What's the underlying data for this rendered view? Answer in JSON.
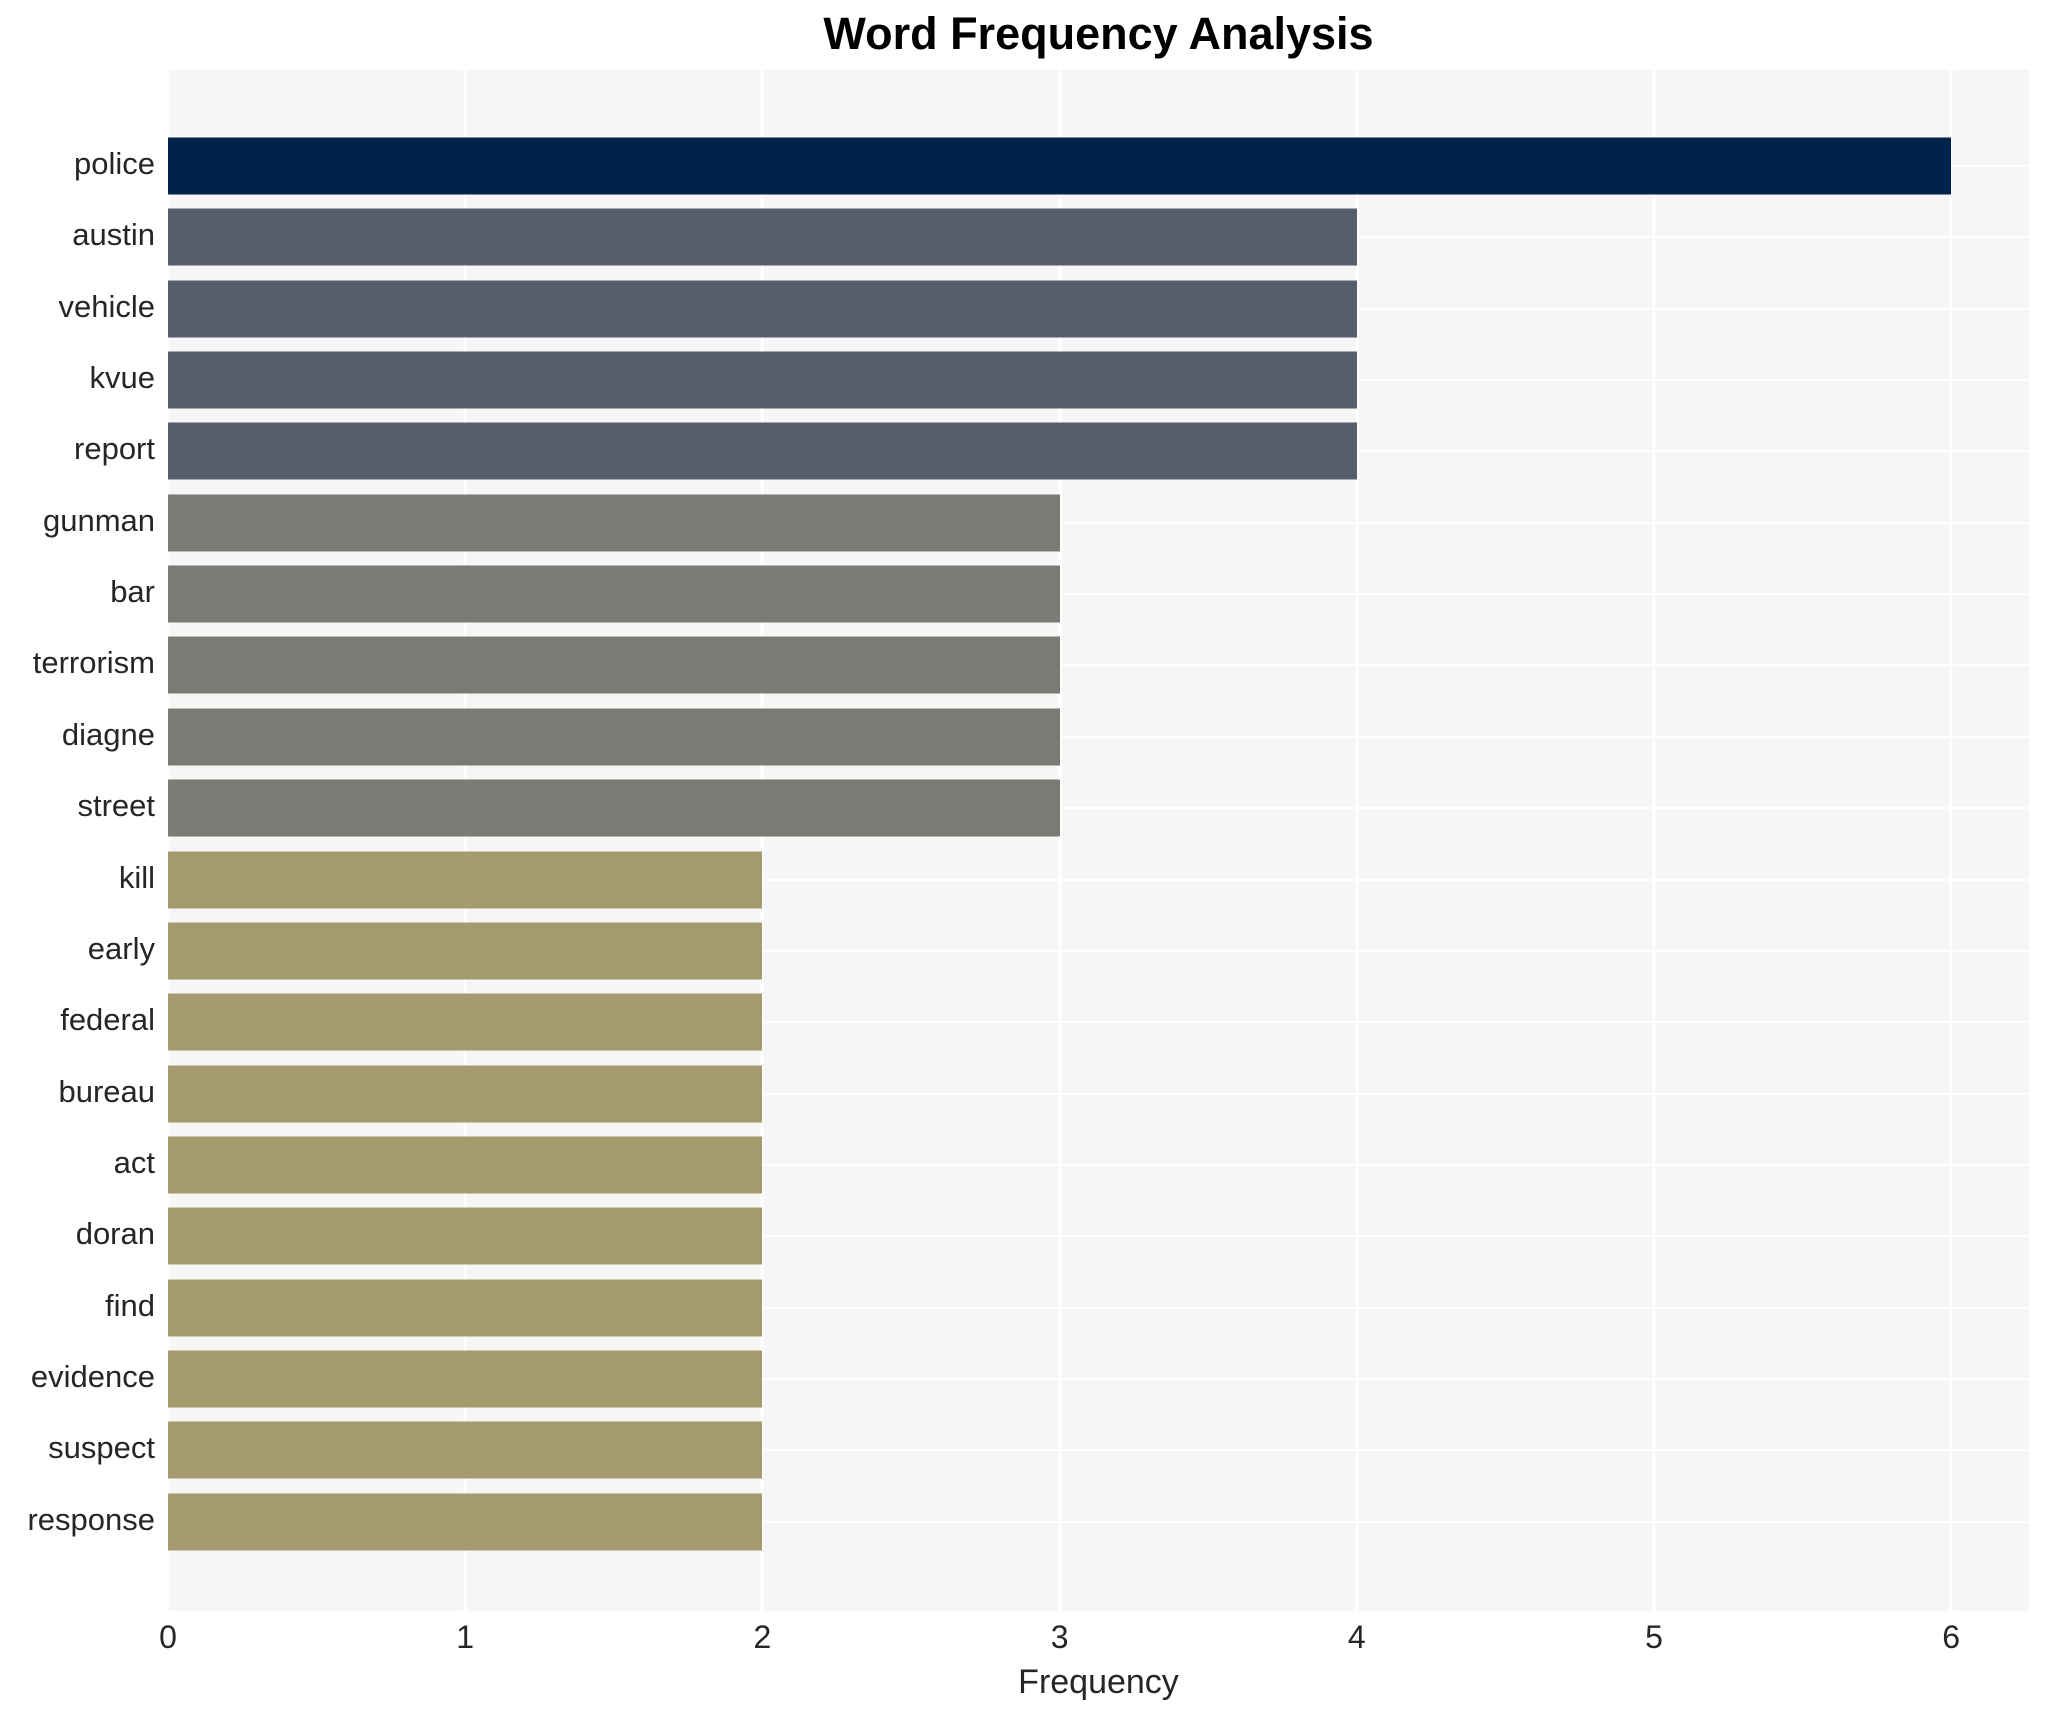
{
  "title": "Word Frequency Analysis",
  "axes": {
    "xlabel": "Frequency",
    "xticks": [
      "0",
      "1",
      "2",
      "3",
      "4",
      "5",
      "6"
    ]
  },
  "chart_data": {
    "type": "bar",
    "orientation": "horizontal",
    "title": "Word Frequency Analysis",
    "xlabel": "Frequency",
    "ylabel": "",
    "categories": [
      "police",
      "austin",
      "vehicle",
      "kvue",
      "report",
      "gunman",
      "bar",
      "terrorism",
      "diagne",
      "street",
      "kill",
      "early",
      "federal",
      "bureau",
      "act",
      "doran",
      "find",
      "evidence",
      "suspect",
      "response"
    ],
    "values": [
      6,
      4,
      4,
      4,
      4,
      3,
      3,
      3,
      3,
      3,
      2,
      2,
      2,
      2,
      2,
      2,
      2,
      2,
      2,
      2
    ],
    "bar_colors": [
      "#00234c",
      "#565d6c",
      "#565d6c",
      "#565d6c",
      "#565d6c",
      "#7c7a74",
      "#7c7a74",
      "#7c7a74",
      "#7c7a74",
      "#7c7a74",
      "#a49a6e",
      "#a49a6e",
      "#a49a6e",
      "#a49a6e",
      "#a49a6e",
      "#a49a6e",
      "#a49a6e",
      "#a49a6e",
      "#a49a6e",
      "#a49a6e"
    ],
    "xlim": [
      0,
      6.26
    ],
    "xticks": [
      0,
      1,
      2,
      3,
      4,
      5,
      6
    ],
    "grid": "on",
    "legend": "none",
    "panel_bg": "#f6f6f6",
    "grid_color": "#ffffff",
    "text_color": "#262626"
  }
}
